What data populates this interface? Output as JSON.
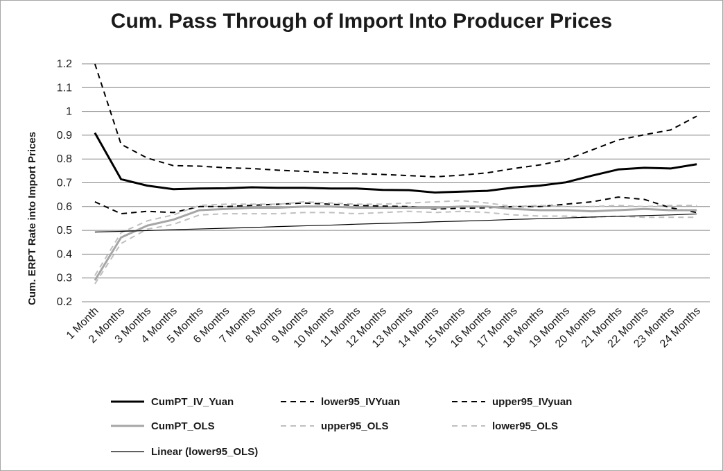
{
  "chart_data": {
    "type": "line",
    "title": "Cum. Pass Through of Import Into Producer Prices",
    "ylabel": "Cum. ERPT Rate into Import Prices",
    "xlabel": "",
    "ylim": [
      0.2,
      1.2
    ],
    "yticks": [
      0.2,
      0.3,
      0.4,
      0.5,
      0.6,
      0.7,
      0.8,
      0.9,
      1.0,
      1.1,
      1.2
    ],
    "ytick_labels": [
      "0.2",
      "0.3",
      "0.4",
      "0.5",
      "0.6",
      "0.7",
      "0.8",
      "0.9",
      "1",
      "1.1",
      "1.2"
    ],
    "grid": true,
    "legend_position": "bottom",
    "categories": [
      "1 Month",
      "2 Months",
      "3 Months",
      "4 Months",
      "5 Months",
      "6 Months",
      "7 Months",
      "8 Months",
      "9 Months",
      "10 Months",
      "11 Months",
      "12 Months",
      "13 Months",
      "14 Months",
      "15 Months",
      "16 Months",
      "17 Months",
      "18 Months",
      "19 Months",
      "20 Months",
      "21 Months",
      "22 Months",
      "23 Months",
      "24 Months"
    ],
    "series": [
      {
        "name": "CumPT_IV_Yuan",
        "color": "#000000",
        "style": "solid-thick",
        "values": [
          0.91,
          0.715,
          0.688,
          0.673,
          0.676,
          0.677,
          0.681,
          0.679,
          0.679,
          0.676,
          0.676,
          0.67,
          0.669,
          0.659,
          0.663,
          0.666,
          0.68,
          0.688,
          0.702,
          0.73,
          0.756,
          0.763,
          0.76,
          0.778
        ]
      },
      {
        "name": "lower95_IVYuan",
        "color": "#000000",
        "style": "dashed",
        "values": [
          0.62,
          0.57,
          0.58,
          0.575,
          0.6,
          0.6,
          0.605,
          0.61,
          0.615,
          0.61,
          0.605,
          0.602,
          0.6,
          0.59,
          0.593,
          0.595,
          0.6,
          0.6,
          0.61,
          0.62,
          0.64,
          0.63,
          0.595,
          0.575
        ]
      },
      {
        "name": "upper95_IVyuan",
        "color": "#000000",
        "style": "dashed",
        "values": [
          1.2,
          0.862,
          0.804,
          0.772,
          0.77,
          0.763,
          0.76,
          0.753,
          0.748,
          0.742,
          0.738,
          0.735,
          0.73,
          0.725,
          0.732,
          0.742,
          0.76,
          0.775,
          0.797,
          0.838,
          0.88,
          0.902,
          0.922,
          0.98
        ]
      },
      {
        "name": "CumPT_OLS",
        "color": "#a6a6a6",
        "style": "solid-thick",
        "values": [
          0.29,
          0.47,
          0.52,
          0.545,
          0.585,
          0.59,
          0.595,
          0.595,
          0.6,
          0.6,
          0.595,
          0.595,
          0.595,
          0.595,
          0.6,
          0.6,
          0.59,
          0.585,
          0.585,
          0.58,
          0.585,
          0.59,
          0.585,
          0.585
        ]
      },
      {
        "name": "upper95_OLS",
        "color": "#bfbfbf",
        "style": "dashed",
        "values": [
          0.31,
          0.49,
          0.54,
          0.565,
          0.605,
          0.61,
          0.61,
          0.61,
          0.62,
          0.615,
          0.61,
          0.61,
          0.615,
          0.62,
          0.625,
          0.615,
          0.6,
          0.605,
          0.6,
          0.6,
          0.605,
          0.6,
          0.605,
          0.605
        ]
      },
      {
        "name": "lower95_OLS",
        "color": "#bfbfbf",
        "style": "dashed",
        "values": [
          0.275,
          0.445,
          0.505,
          0.525,
          0.565,
          0.57,
          0.57,
          0.57,
          0.575,
          0.575,
          0.57,
          0.575,
          0.58,
          0.575,
          0.58,
          0.575,
          0.565,
          0.56,
          0.56,
          0.555,
          0.56,
          0.555,
          0.555,
          0.555
        ]
      },
      {
        "name": "Linear (lower95_OLS)",
        "color": "#000000",
        "style": "solid-thin",
        "values": [
          0.493,
          0.496,
          0.499,
          0.503,
          0.506,
          0.509,
          0.512,
          0.516,
          0.519,
          0.522,
          0.526,
          0.529,
          0.532,
          0.536,
          0.539,
          0.542,
          0.546,
          0.549,
          0.552,
          0.556,
          0.559,
          0.562,
          0.565,
          0.569
        ]
      }
    ]
  }
}
